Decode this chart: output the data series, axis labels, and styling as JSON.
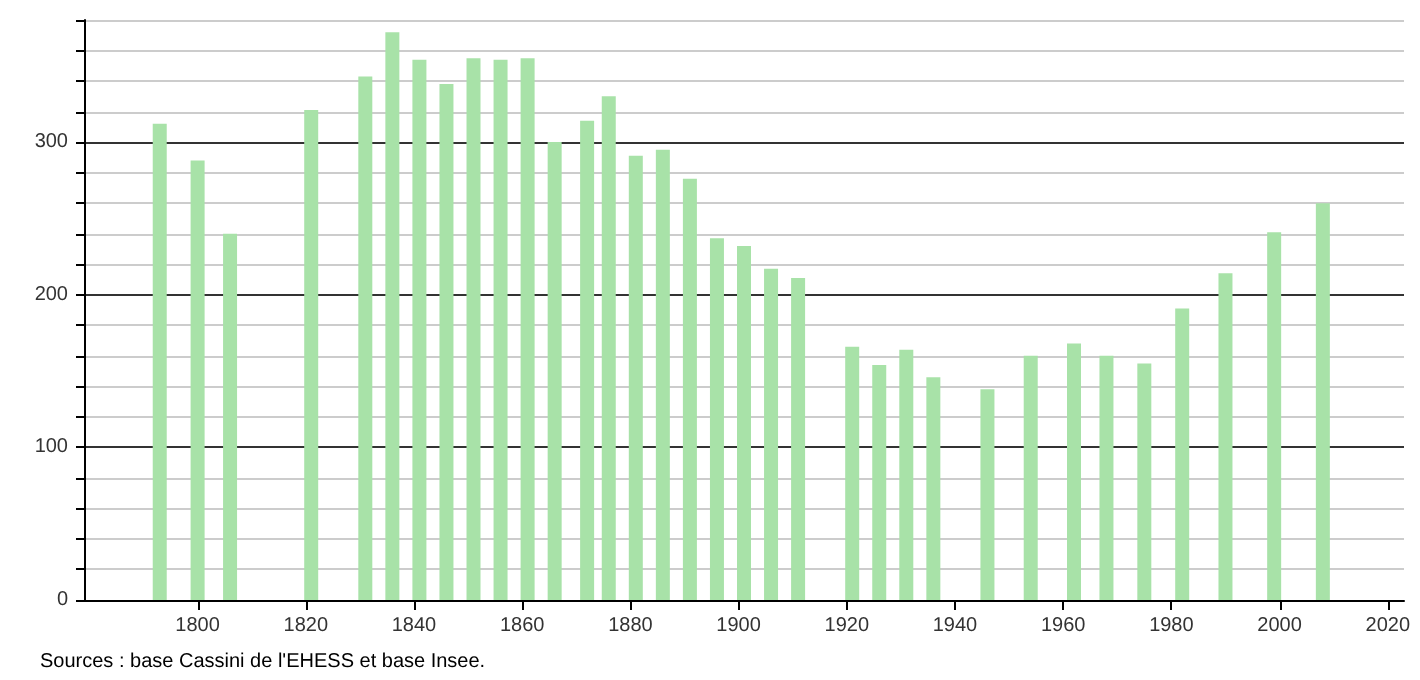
{
  "chart_data": {
    "type": "bar",
    "x": [
      1793,
      1800,
      1806,
      1821,
      1831,
      1836,
      1841,
      1846,
      1851,
      1856,
      1861,
      1866,
      1872,
      1876,
      1881,
      1886,
      1891,
      1896,
      1901,
      1906,
      1911,
      1921,
      1926,
      1931,
      1936,
      1946,
      1954,
      1962,
      1968,
      1975,
      1982,
      1990,
      1999,
      2008
    ],
    "values": [
      312,
      288,
      240,
      321,
      343,
      372,
      354,
      338,
      355,
      354,
      355,
      300,
      314,
      330,
      291,
      295,
      276,
      237,
      232,
      217,
      211,
      166,
      154,
      164,
      146,
      138,
      160,
      168,
      160,
      155,
      191,
      214,
      241,
      260
    ],
    "color": "#a8e2a8",
    "xlim": [
      1779,
      2023
    ],
    "xticks": [
      1800,
      1820,
      1840,
      1860,
      1880,
      1900,
      1920,
      1940,
      1960,
      1980,
      2000,
      2020
    ],
    "ylim": [
      0,
      380
    ],
    "yticks": [
      0,
      {
        "value": 20,
        "label": null
      },
      {
        "value": 40,
        "label": null
      },
      {
        "value": 60,
        "label": null
      },
      {
        "value": 80,
        "label": null
      },
      100,
      {
        "value": 120,
        "label": null
      },
      {
        "value": 140,
        "label": null
      },
      {
        "value": 160,
        "label": null
      },
      {
        "value": 180,
        "label": null
      },
      200,
      {
        "value": 220,
        "label": null
      },
      {
        "value": 240,
        "label": null
      },
      {
        "value": 260,
        "label": null
      },
      {
        "value": 280,
        "label": null
      },
      300,
      {
        "value": 320,
        "label": null
      },
      {
        "value": 340,
        "label": null
      },
      {
        "value": 360,
        "label": null
      },
      {
        "value": 380,
        "label": null
      }
    ],
    "grid": "y",
    "annotations": [
      "Sources : base Cassini de l'EHESS et base Insee."
    ]
  }
}
